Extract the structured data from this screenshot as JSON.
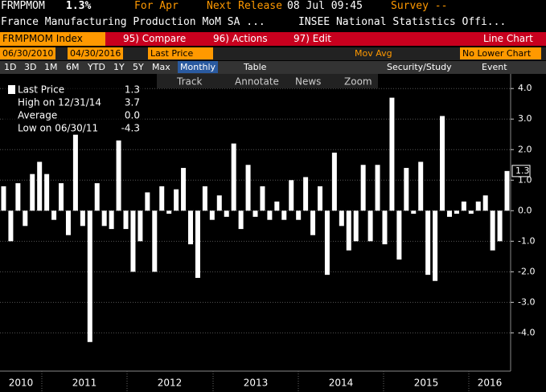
{
  "header": {
    "ticker": "FRMPMOM",
    "change": "1.3%",
    "period": "For Apr",
    "next_release_label": "Next Release",
    "next_release": "08 Jul 09:45",
    "survey": "Survey --",
    "description": "France Manufacturing Production MoM SA ...",
    "source": "INSEE National Statistics Offi..."
  },
  "menu": {
    "security": "FRMPMOM Index",
    "compare": "95) Compare",
    "actions": "96) Actions",
    "edit": "97) Edit",
    "chart_kind": "Line Chart"
  },
  "range": {
    "start": "06/30/2010",
    "end": "04/30/2016",
    "field": "Last Price",
    "mov_avg": "Mov Avg",
    "lower": "No Lower Chart"
  },
  "periods": [
    "1D",
    "3D",
    "1M",
    "6M",
    "YTD",
    "1Y",
    "5Y",
    "Max"
  ],
  "frequency": "Monthly",
  "table": "Table",
  "study": "Security/Study",
  "event": "Event",
  "tools": [
    "Track",
    "Annotate",
    "News",
    "Zoom"
  ],
  "chart_data": {
    "type": "bar",
    "color": "#ffffff",
    "values": [
      0.8,
      -1.0,
      0.9,
      -0.5,
      1.2,
      1.6,
      1.2,
      -0.3,
      0.9,
      -0.8,
      2.5,
      -0.5,
      -4.3,
      0.9,
      -0.5,
      -0.6,
      2.3,
      -0.6,
      -2.0,
      -1.0,
      0.6,
      -2.0,
      0.8,
      -0.1,
      0.7,
      1.4,
      -1.1,
      -2.2,
      0.8,
      -0.3,
      0.5,
      -0.2,
      2.2,
      -0.6,
      1.5,
      -0.2,
      0.8,
      -0.3,
      0.3,
      -0.3,
      1.0,
      -0.3,
      1.1,
      -0.8,
      0.8,
      -2.1,
      1.9,
      -0.5,
      -1.3,
      -1.0,
      1.5,
      -1.0,
      1.5,
      -1.1,
      3.7,
      -1.6,
      1.4,
      -0.1,
      1.6,
      -2.1,
      -2.3,
      3.1,
      -0.2,
      -0.1,
      0.3,
      -0.1,
      0.3,
      0.5,
      -1.3,
      -1.0,
      1.3
    ],
    "x_labels": [
      "2010",
      "2011",
      "2012",
      "2013",
      "2014",
      "2015",
      "2016"
    ],
    "ylim": [
      -5.2,
      4.4
    ],
    "yticks": [
      {
        "value": 4,
        "label": "4.0"
      },
      {
        "value": 3,
        "label": "3.0"
      },
      {
        "value": 2,
        "label": "2.0"
      },
      {
        "value": 1,
        "label": "1.0"
      },
      {
        "value": 0,
        "label": "0.0"
      },
      {
        "value": -1,
        "label": "-1.0"
      },
      {
        "value": -2,
        "label": "-2.0"
      },
      {
        "value": -3,
        "label": "-3.0"
      },
      {
        "value": -4,
        "label": "-4.0"
      }
    ],
    "grid": true,
    "stats": [
      {
        "name": "Last Price",
        "value": 1.3
      },
      {
        "name": "High on 12/31/14",
        "value": 3.7
      },
      {
        "name": "Average",
        "value": 0,
        "label": "0.0"
      },
      {
        "name": "Low on 06/30/11",
        "value": -4.3
      }
    ]
  }
}
